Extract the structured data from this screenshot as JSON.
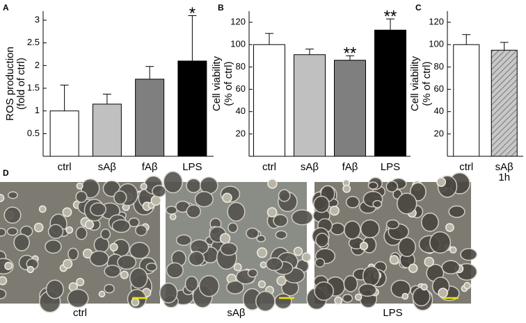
{
  "chart_data": [
    {
      "type": "bar",
      "panel": "A",
      "ylabel": [
        "ROS production",
        "(fold of ctrl)"
      ],
      "categories": [
        "ctrl",
        "sAβ",
        "fAβ",
        "LPS"
      ],
      "values": [
        1.0,
        1.15,
        1.7,
        2.1
      ],
      "errors": [
        0.57,
        0.22,
        0.28,
        1.0
      ],
      "colors": [
        "#ffffff",
        "#c0c0c0",
        "#7f7f7f",
        "#000000"
      ],
      "hatch": [
        false,
        false,
        false,
        false
      ],
      "annotations": [
        {
          "category": 3,
          "text": "*"
        }
      ],
      "ylim": [
        0,
        3.2
      ],
      "yticks": [
        0.5,
        1,
        1.5,
        2,
        2.5,
        3
      ]
    },
    {
      "type": "bar",
      "panel": "B",
      "ylabel": [
        "Cell viability",
        "(% of ctrl)"
      ],
      "categories": [
        "ctrl",
        "sAβ",
        "fAβ",
        "LPS"
      ],
      "values": [
        100,
        91,
        86,
        113
      ],
      "errors": [
        10,
        5,
        4,
        10
      ],
      "colors": [
        "#ffffff",
        "#c0c0c0",
        "#7f7f7f",
        "#000000"
      ],
      "hatch": [
        false,
        false,
        false,
        false
      ],
      "annotations": [
        {
          "category": 2,
          "text": "**"
        },
        {
          "category": 3,
          "text": "**"
        }
      ],
      "ylim": [
        0,
        130
      ],
      "yticks": [
        20,
        40,
        60,
        80,
        100,
        120
      ]
    },
    {
      "type": "bar",
      "panel": "C",
      "ylabel": [
        "Cell viability",
        "(% of ctrl)"
      ],
      "categories": [
        "ctrl",
        [
          "sAβ",
          "1h"
        ]
      ],
      "values": [
        100,
        95
      ],
      "errors": [
        9,
        7
      ],
      "colors": [
        "#ffffff",
        "#c0c0c0"
      ],
      "hatch": [
        false,
        true
      ],
      "annotations": [],
      "ylim": [
        0,
        130
      ],
      "yticks": [
        20,
        40,
        60,
        80,
        100,
        120
      ]
    }
  ],
  "panel_d": {
    "label": "D",
    "images": [
      {
        "caption": "ctrl"
      },
      {
        "caption": "sAβ"
      },
      {
        "caption": "LPS"
      }
    ]
  }
}
